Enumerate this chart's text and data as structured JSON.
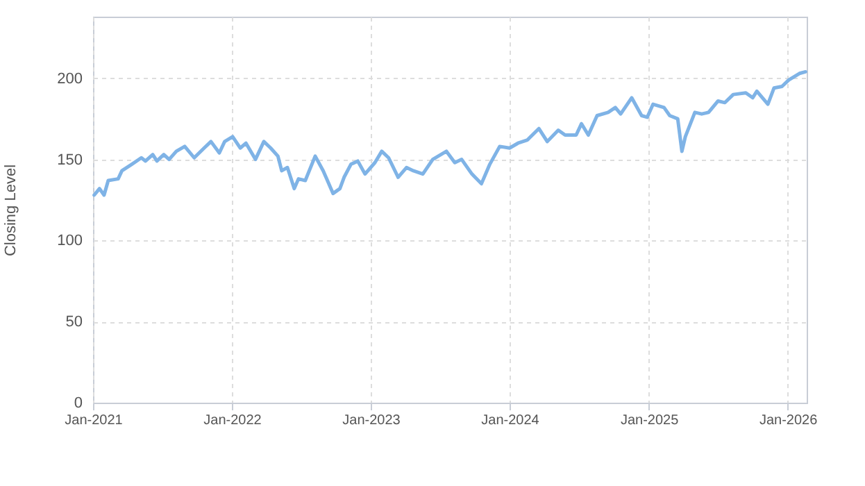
{
  "chart_data": {
    "type": "line",
    "ylabel": "Closing Level",
    "xlim": [
      "2021-01-01",
      "2026-02-20"
    ],
    "ylim": [
      0,
      238
    ],
    "yticks": [
      0,
      50,
      100,
      150,
      200
    ],
    "xticks": [
      {
        "value": "2021-01-01",
        "label": "Jan-2021"
      },
      {
        "value": "2022-01-01",
        "label": "Jan-2022"
      },
      {
        "value": "2023-01-01",
        "label": "Jan-2023"
      },
      {
        "value": "2024-01-01",
        "label": "Jan-2024"
      },
      {
        "value": "2025-01-01",
        "label": "Jan-2025"
      },
      {
        "value": "2026-01-01",
        "label": "Jan-2026"
      }
    ],
    "grid": true,
    "marker": "none",
    "line_style": "solid",
    "x": [
      "2021-01-04",
      "2021-01-18",
      "2021-01-30",
      "2021-02-10",
      "2021-03-08",
      "2021-03-18",
      "2021-04-13",
      "2021-05-08",
      "2021-05-19",
      "2021-06-07",
      "2021-06-18",
      "2021-07-06",
      "2021-07-20",
      "2021-08-08",
      "2021-08-30",
      "2021-09-24",
      "2021-10-20",
      "2021-11-07",
      "2021-11-29",
      "2021-12-13",
      "2022-01-03",
      "2022-01-23",
      "2022-02-07",
      "2022-03-04",
      "2022-03-26",
      "2022-04-13",
      "2022-05-02",
      "2022-05-12",
      "2022-05-27",
      "2022-06-14",
      "2022-06-25",
      "2022-07-13",
      "2022-08-08",
      "2022-08-29",
      "2022-09-24",
      "2022-10-12",
      "2022-10-23",
      "2022-11-10",
      "2022-11-28",
      "2022-12-17",
      "2023-01-12",
      "2023-01-30",
      "2023-02-17",
      "2023-03-14",
      "2023-04-05",
      "2023-04-23",
      "2023-05-18",
      "2023-06-13",
      "2023-07-19",
      "2023-08-10",
      "2023-08-28",
      "2023-09-24",
      "2023-10-19",
      "2023-11-10",
      "2023-12-06",
      "2024-01-01",
      "2024-01-23",
      "2024-02-17",
      "2024-03-18",
      "2024-04-09",
      "2024-05-08",
      "2024-05-26",
      "2024-06-24",
      "2024-07-08",
      "2024-07-26",
      "2024-08-18",
      "2024-09-16",
      "2024-10-05",
      "2024-10-19",
      "2024-11-17",
      "2024-12-13",
      "2024-12-28",
      "2025-01-12",
      "2025-02-10",
      "2025-02-25",
      "2025-03-18",
      "2025-03-29",
      "2025-04-07",
      "2025-05-02",
      "2025-05-20",
      "2025-06-07",
      "2025-07-02",
      "2025-07-20",
      "2025-08-11",
      "2025-09-13",
      "2025-10-01",
      "2025-10-12",
      "2025-11-10",
      "2025-11-26",
      "2025-12-17",
      "2026-01-04",
      "2026-02-01",
      "2026-02-17"
    ],
    "series": [
      {
        "color": "#7fb3e6",
        "values": [
          128,
          132,
          128,
          137,
          138,
          143,
          147,
          151,
          149,
          153,
          149,
          153,
          150,
          155,
          158,
          151,
          157,
          161,
          154,
          161,
          164,
          157,
          160,
          150,
          161,
          157,
          152,
          143,
          145,
          132,
          138,
          137,
          152,
          143,
          129,
          132,
          139,
          147,
          149,
          141,
          148,
          155,
          151,
          139,
          145,
          143,
          141,
          150,
          155,
          148,
          150,
          141,
          135,
          147,
          158,
          157,
          160,
          162,
          169,
          161,
          168,
          165,
          165,
          172,
          165,
          177,
          179,
          182,
          178,
          188,
          177,
          176,
          184,
          182,
          177,
          175,
          155,
          164,
          179,
          178,
          179,
          186,
          185,
          190,
          191,
          188,
          192,
          184,
          194,
          195,
          199,
          203,
          204
        ]
      }
    ]
  }
}
